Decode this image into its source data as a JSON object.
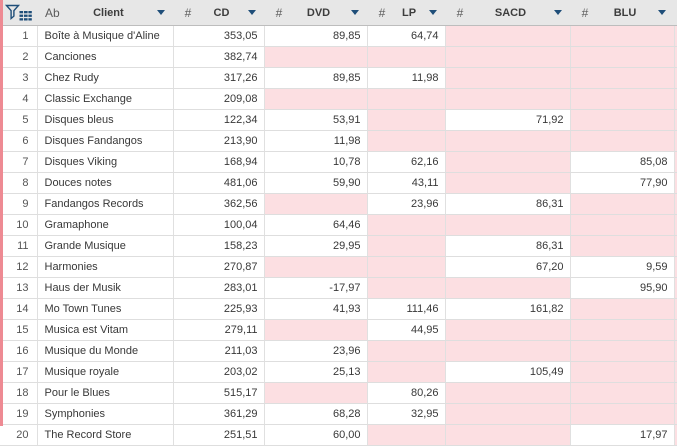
{
  "header": {
    "filter_icon": "funnel-table-icon",
    "columns": [
      {
        "label": "Client",
        "type_glyph": "Ab",
        "type": "text"
      },
      {
        "label": "CD",
        "type_glyph": "#",
        "type": "number"
      },
      {
        "label": "DVD",
        "type_glyph": "#",
        "type": "number"
      },
      {
        "label": "LP",
        "type_glyph": "#",
        "type": "number"
      },
      {
        "label": "SACD",
        "type_glyph": "#",
        "type": "number"
      },
      {
        "label": "BLU",
        "type_glyph": "#",
        "type": "number"
      }
    ]
  },
  "rows": [
    {
      "n": "1",
      "client": "Boîte à Musique d'Aline",
      "cd": "353,05",
      "dvd": "89,85",
      "lp": "64,74",
      "sacd": null,
      "blu": null
    },
    {
      "n": "2",
      "client": "Canciones",
      "cd": "382,74",
      "dvd": null,
      "lp": null,
      "sacd": null,
      "blu": null
    },
    {
      "n": "3",
      "client": "Chez Rudy",
      "cd": "317,26",
      "dvd": "89,85",
      "lp": "11,98",
      "sacd": null,
      "blu": null
    },
    {
      "n": "4",
      "client": "Classic Exchange",
      "cd": "209,08",
      "dvd": null,
      "lp": null,
      "sacd": null,
      "blu": null
    },
    {
      "n": "5",
      "client": "Disques bleus",
      "cd": "122,34",
      "dvd": "53,91",
      "lp": null,
      "sacd": "71,92",
      "blu": null
    },
    {
      "n": "6",
      "client": "Disques Fandangos",
      "cd": "213,90",
      "dvd": "11,98",
      "lp": null,
      "sacd": null,
      "blu": null
    },
    {
      "n": "7",
      "client": "Disques Viking",
      "cd": "168,94",
      "dvd": "10,78",
      "lp": "62,16",
      "sacd": null,
      "blu": "85,08"
    },
    {
      "n": "8",
      "client": "Douces notes",
      "cd": "481,06",
      "dvd": "59,90",
      "lp": "43,11",
      "sacd": null,
      "blu": "77,90"
    },
    {
      "n": "9",
      "client": "Fandangos Records",
      "cd": "362,56",
      "dvd": null,
      "lp": "23,96",
      "sacd": "86,31",
      "blu": null
    },
    {
      "n": "10",
      "client": "Gramaphone",
      "cd": "100,04",
      "dvd": "64,46",
      "lp": null,
      "sacd": null,
      "blu": null
    },
    {
      "n": "11",
      "client": "Grande Musique",
      "cd": "158,23",
      "dvd": "29,95",
      "lp": null,
      "sacd": "86,31",
      "blu": null
    },
    {
      "n": "12",
      "client": "Harmonies",
      "cd": "270,87",
      "dvd": null,
      "lp": null,
      "sacd": "67,20",
      "blu": "9,59"
    },
    {
      "n": "13",
      "client": "Haus der Musik",
      "cd": "283,01",
      "dvd": "-17,97",
      "lp": null,
      "sacd": null,
      "blu": "95,90"
    },
    {
      "n": "14",
      "client": "Mo Town Tunes",
      "cd": "225,93",
      "dvd": "41,93",
      "lp": "111,46",
      "sacd": "161,82",
      "blu": null
    },
    {
      "n": "15",
      "client": "Musica est Vitam",
      "cd": "279,11",
      "dvd": null,
      "lp": "44,95",
      "sacd": null,
      "blu": null
    },
    {
      "n": "16",
      "client": "Musique du Monde",
      "cd": "211,03",
      "dvd": "23,96",
      "lp": null,
      "sacd": null,
      "blu": null
    },
    {
      "n": "17",
      "client": "Musique royale",
      "cd": "203,02",
      "dvd": "25,13",
      "lp": null,
      "sacd": "105,49",
      "blu": null
    },
    {
      "n": "18",
      "client": "Pour le Blues",
      "cd": "515,17",
      "dvd": null,
      "lp": "80,26",
      "sacd": null,
      "blu": null
    },
    {
      "n": "19",
      "client": "Symphonies",
      "cd": "361,29",
      "dvd": "68,28",
      "lp": "32,95",
      "sacd": null,
      "blu": null
    },
    {
      "n": "20",
      "client": "The Record Store",
      "cd": "251,51",
      "dvd": "60,00",
      "lp": null,
      "sacd": null,
      "blu": "17,97"
    }
  ],
  "colors": {
    "accent_blue": "#1f4e79",
    "null_cell_pink": "#fcdfe2",
    "edge_stripe_red": "#ee8a93",
    "header_bg": "#e7e7e7",
    "grid_line": "#e0e0e0"
  }
}
